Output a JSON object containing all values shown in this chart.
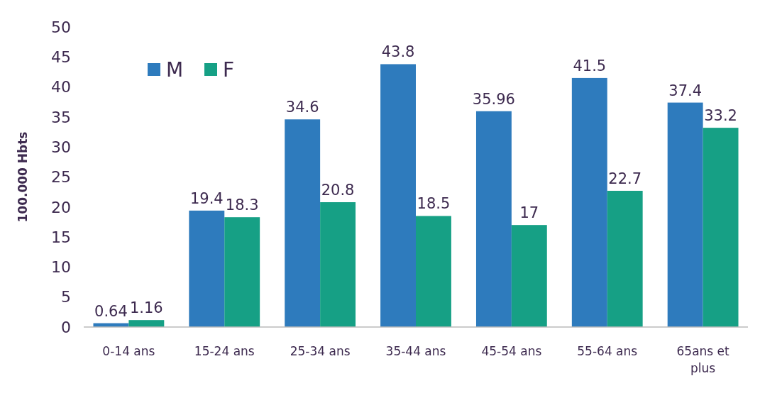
{
  "chart_data": {
    "type": "bar",
    "ylabel": "100.000 Hbts",
    "categories": [
      "0-14 ans",
      "15-24 ans",
      "25-34 ans",
      "35-44 ans",
      "45-54 ans",
      "55-64 ans",
      "65ans et plus"
    ],
    "series": [
      {
        "name": "M",
        "color": "#2e7bbd",
        "values": [
          0.64,
          19.4,
          34.6,
          43.8,
          35.96,
          41.5,
          37.4
        ]
      },
      {
        "name": "F",
        "color": "#16a085",
        "values": [
          1.16,
          18.3,
          20.8,
          18.5,
          17,
          22.7,
          33.2
        ]
      }
    ],
    "ylim": [
      0,
      50
    ],
    "yticks": [
      0,
      5,
      10,
      15,
      20,
      25,
      30,
      35,
      40,
      45,
      50
    ],
    "grid": false,
    "legend": "top left",
    "data_labels": true
  }
}
